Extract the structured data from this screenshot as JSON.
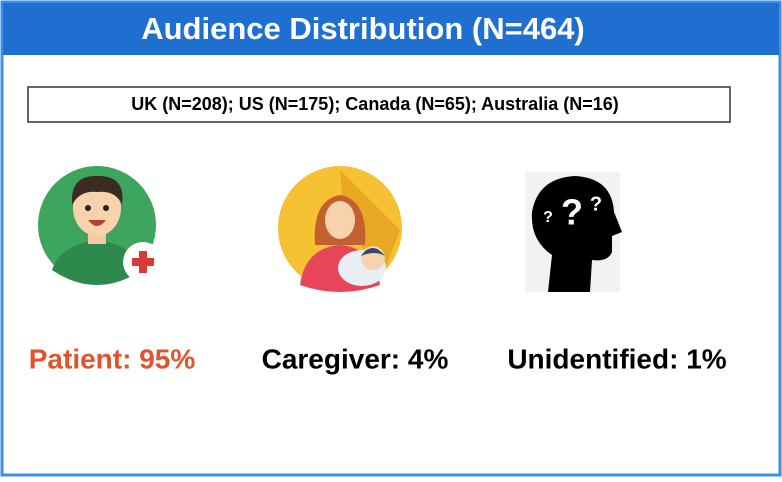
{
  "header": {
    "title": "Audience Distribution (N=464)"
  },
  "subtitle": "UK (N=208); US (N=175); Canada (N=65); Australia (N=16)",
  "items": [
    {
      "label": "Patient: 95%"
    },
    {
      "label": "Caregiver: 4%"
    },
    {
      "label": "Unidentified: 1%"
    }
  ]
}
